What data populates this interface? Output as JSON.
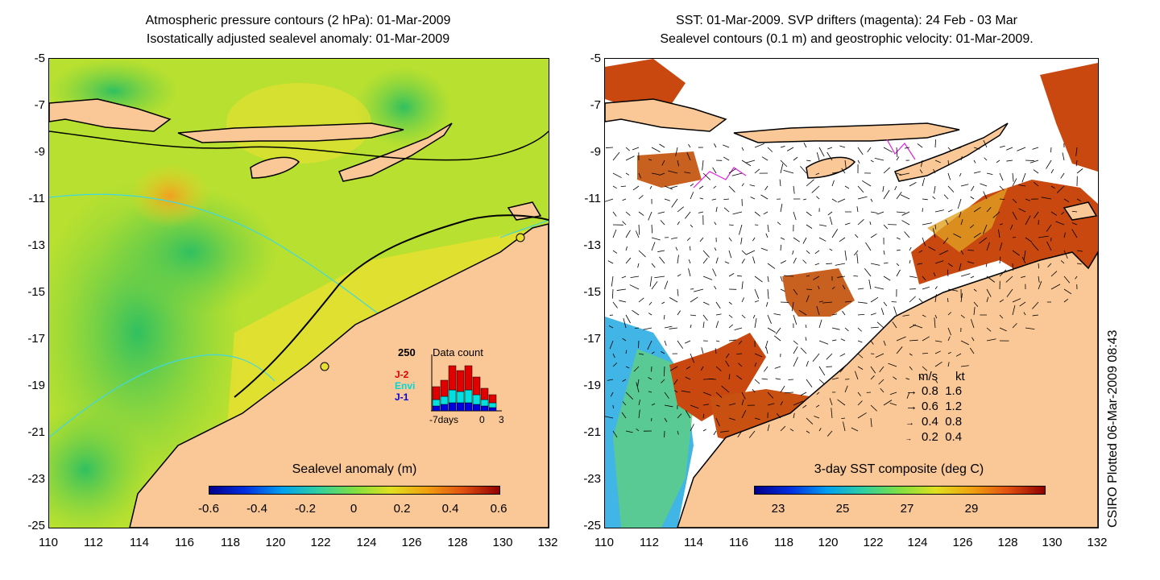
{
  "left_panel": {
    "title_line1": "Atmospheric pressure contours (2 hPa): 01-Mar-2009",
    "title_line2": "Isostatically adjusted sealevel anomaly: 01-Mar-2009",
    "y_ticks": [
      "-5",
      "-7",
      "-9",
      "-11",
      "-13",
      "-15",
      "-17",
      "-19",
      "-21",
      "-23",
      "-25"
    ],
    "x_ticks": [
      "110",
      "112",
      "114",
      "116",
      "118",
      "120",
      "122",
      "124",
      "126",
      "128",
      "130",
      "132"
    ],
    "colorbar": {
      "title": "Sealevel anomaly (m)",
      "ticks": [
        "-0.6",
        "-0.4",
        "-0.2",
        "0",
        "0.2",
        "0.4",
        "0.6"
      ]
    },
    "data_count": {
      "max_label": "250",
      "title": "Data count",
      "series": [
        {
          "name": "J-2",
          "color": "#e00000"
        },
        {
          "name": "Envi",
          "color": "#00e0e0"
        },
        {
          "name": "J-1",
          "color": "#0000e0"
        }
      ],
      "x_labels": [
        "-7days",
        "0",
        "3"
      ]
    }
  },
  "right_panel": {
    "title_line1": "SST: 01-Mar-2009. SVP drifters (magenta): 24 Feb - 03 Mar",
    "title_line2": "Sealevel contours (0.1 m) and geostrophic velocity: 01-Mar-2009.",
    "y_ticks": [
      "-5",
      "-7",
      "-9",
      "-11",
      "-13",
      "-15",
      "-17",
      "-19",
      "-21",
      "-23",
      "-25"
    ],
    "x_ticks": [
      "110",
      "112",
      "114",
      "116",
      "118",
      "120",
      "122",
      "124",
      "126",
      "128",
      "130",
      "132"
    ],
    "colorbar": {
      "title": "3-day SST composite (deg C)",
      "ticks": [
        "23",
        "25",
        "27",
        "29"
      ]
    },
    "velocity_legend": {
      "header_ms": "m/s",
      "header_kt": "kt",
      "rows": [
        {
          "ms": "0.8",
          "kt": "1.6"
        },
        {
          "ms": "0.6",
          "kt": "1.2"
        },
        {
          "ms": "0.4",
          "kt": "0.8"
        },
        {
          "ms": "0.2",
          "kt": "0.4"
        }
      ]
    }
  },
  "credit": "CSIRO Plotted 06-Mar-2009 08:43",
  "colors": {
    "land": "#fac896",
    "ocean_left": "#b8e030",
    "sst_warm": "#c84810",
    "sst_cool": "#20a8e0",
    "contour_cyan": "#40d8e0",
    "drifter": "#e020e0"
  }
}
